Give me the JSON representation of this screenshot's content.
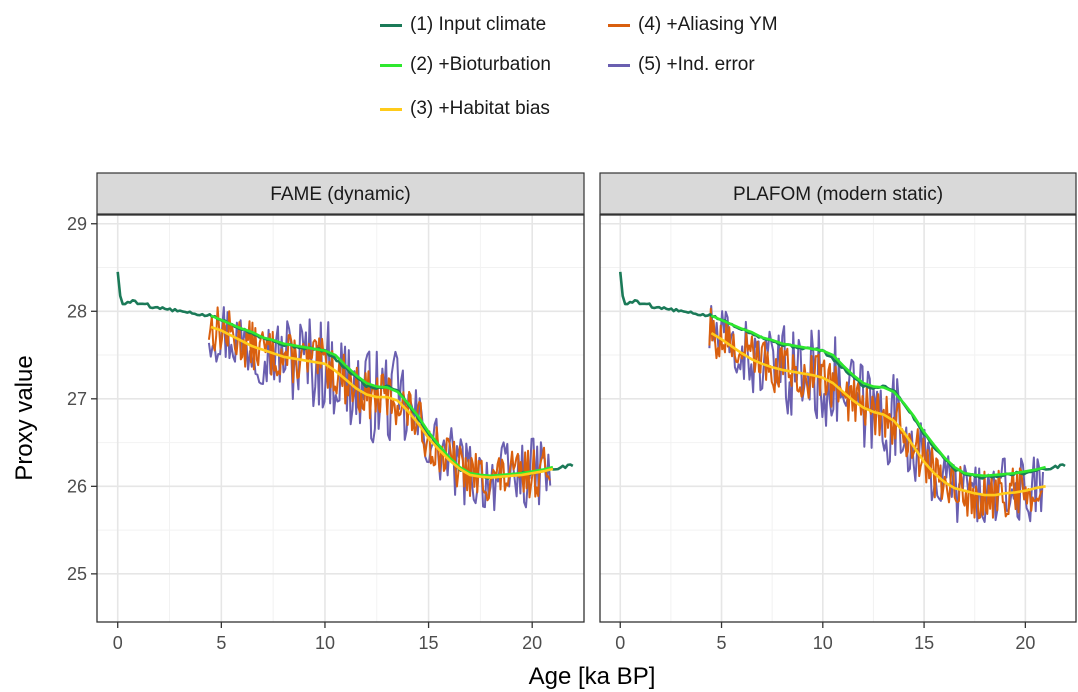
{
  "chart_data": {
    "type": "line",
    "xlabel": "Age [ka BP]",
    "ylabel": "Proxy value",
    "xlim": [
      -1,
      22.5
    ],
    "ylim": [
      24.45,
      29.1
    ],
    "xticks": [
      0,
      5,
      10,
      15,
      20
    ],
    "yticks": [
      25,
      26,
      27,
      28,
      29
    ],
    "grid": true,
    "legend_position": "top",
    "legend": [
      {
        "label": "(1) Input climate",
        "color": "#1b7a58"
      },
      {
        "label": "(2) +Bioturbation",
        "color": "#2ee82e"
      },
      {
        "label": "(3) +Habitat bias",
        "color": "#ffcb1a"
      },
      {
        "label": "(4) +Aliasing YM",
        "color": "#d95f0e"
      },
      {
        "label": "(5) +Ind. error",
        "color": "#6a5fb0"
      }
    ],
    "panels": [
      {
        "title": "FAME (dynamic)",
        "series": [
          {
            "name": "(1) Input climate",
            "color": "#1b7a58",
            "x": [
              0,
              0.1,
              0.2,
              0.5,
              0.8,
              1,
              1.3,
              1.6,
              2,
              2.5,
              3,
              3.5,
              4,
              4.5,
              5,
              5.5,
              6,
              6.5,
              7,
              7.5,
              8,
              8.5,
              9,
              9.5,
              10,
              10.5,
              11,
              11.5,
              12,
              12.5,
              13,
              13.5,
              14,
              14.5,
              15,
              15.5,
              16,
              16.5,
              17,
              17.5,
              18,
              18.5,
              19,
              19.5,
              20,
              20.5,
              21,
              21.5,
              22
            ],
            "y": [
              28.45,
              28.2,
              28.08,
              28.1,
              28.12,
              28.08,
              28.1,
              28.05,
              28.04,
              28.02,
              28.0,
              27.98,
              27.96,
              27.95,
              27.9,
              27.85,
              27.8,
              27.75,
              27.7,
              27.66,
              27.62,
              27.6,
              27.58,
              27.57,
              27.55,
              27.45,
              27.35,
              27.25,
              27.15,
              27.12,
              27.15,
              27.1,
              26.95,
              26.78,
              26.6,
              26.45,
              26.32,
              26.2,
              26.14,
              26.12,
              26.1,
              26.12,
              26.13,
              26.15,
              26.15,
              26.18,
              26.2,
              26.22,
              26.25
            ]
          },
          {
            "name": "(2) +Bioturbation",
            "color": "#2ee82e",
            "x": [
              4.5,
              5,
              5.5,
              6,
              6.5,
              7,
              7.5,
              8,
              8.5,
              9,
              9.5,
              10,
              10.5,
              11,
              11.5,
              12,
              12.5,
              13,
              13.5,
              14,
              14.5,
              15,
              15.5,
              16,
              16.5,
              17,
              17.5,
              18,
              18.5,
              19,
              19.5,
              20,
              20.5,
              21
            ],
            "y": [
              27.95,
              27.9,
              27.85,
              27.8,
              27.76,
              27.7,
              27.67,
              27.63,
              27.61,
              27.59,
              27.57,
              27.55,
              27.5,
              27.38,
              27.27,
              27.18,
              27.14,
              27.13,
              27.08,
              26.95,
              26.8,
              26.62,
              26.47,
              26.33,
              26.22,
              26.15,
              26.13,
              26.12,
              26.13,
              26.14,
              26.15,
              26.17,
              26.19,
              26.22
            ]
          },
          {
            "name": "(3) +Habitat bias",
            "color": "#ffcb1a",
            "x": [
              4.5,
              5,
              5.5,
              6,
              6.5,
              7,
              7.5,
              8,
              8.5,
              9,
              9.5,
              10,
              10.5,
              11,
              11.5,
              12,
              12.5,
              13,
              13.5,
              14,
              14.5,
              15,
              15.5,
              16,
              16.5,
              17,
              17.5,
              18,
              18.5,
              19,
              19.5,
              20,
              20.5,
              21
            ],
            "y": [
              27.82,
              27.78,
              27.72,
              27.66,
              27.6,
              27.56,
              27.52,
              27.48,
              27.46,
              27.44,
              27.42,
              27.4,
              27.32,
              27.22,
              27.12,
              27.05,
              27.02,
              27.02,
              26.98,
              26.86,
              26.72,
              26.55,
              26.42,
              26.3,
              26.2,
              26.13,
              26.11,
              26.1,
              26.11,
              26.12,
              26.13,
              26.15,
              26.17,
              26.2
            ]
          }
        ]
      },
      {
        "title": "PLAFOM (modern static)",
        "series": [
          {
            "name": "(1) Input climate",
            "color": "#1b7a58",
            "x": [
              0,
              0.1,
              0.2,
              0.5,
              0.8,
              1,
              1.3,
              1.6,
              2,
              2.5,
              3,
              3.5,
              4,
              4.5,
              5,
              5.5,
              6,
              6.5,
              7,
              7.5,
              8,
              8.5,
              9,
              9.5,
              10,
              10.5,
              11,
              11.5,
              12,
              12.5,
              13,
              13.5,
              14,
              14.5,
              15,
              15.5,
              16,
              16.5,
              17,
              17.5,
              18,
              18.5,
              19,
              19.5,
              20,
              20.5,
              21,
              21.5,
              22
            ],
            "y": [
              28.45,
              28.2,
              28.08,
              28.1,
              28.12,
              28.08,
              28.1,
              28.05,
              28.04,
              28.02,
              28.0,
              27.98,
              27.96,
              27.95,
              27.9,
              27.85,
              27.8,
              27.75,
              27.7,
              27.66,
              27.62,
              27.6,
              27.58,
              27.57,
              27.55,
              27.45,
              27.35,
              27.25,
              27.15,
              27.12,
              27.15,
              27.1,
              26.95,
              26.78,
              26.6,
              26.45,
              26.32,
              26.2,
              26.14,
              26.12,
              26.1,
              26.12,
              26.13,
              26.15,
              26.15,
              26.18,
              26.2,
              26.22,
              26.25
            ]
          },
          {
            "name": "(2) +Bioturbation",
            "color": "#2ee82e",
            "x": [
              4.5,
              5,
              5.5,
              6,
              6.5,
              7,
              7.5,
              8,
              8.5,
              9,
              9.5,
              10,
              10.5,
              11,
              11.5,
              12,
              12.5,
              13,
              13.5,
              14,
              14.5,
              15,
              15.5,
              16,
              16.5,
              17,
              17.5,
              18,
              18.5,
              19,
              19.5,
              20,
              20.5,
              21
            ],
            "y": [
              27.95,
              27.9,
              27.85,
              27.8,
              27.76,
              27.7,
              27.67,
              27.63,
              27.61,
              27.59,
              27.57,
              27.55,
              27.5,
              27.38,
              27.27,
              27.18,
              27.14,
              27.13,
              27.08,
              26.95,
              26.8,
              26.62,
              26.47,
              26.33,
              26.22,
              26.15,
              26.13,
              26.12,
              26.13,
              26.14,
              26.15,
              26.17,
              26.19,
              26.22
            ]
          },
          {
            "name": "(3) +Habitat bias",
            "color": "#ffcb1a",
            "x": [
              4.5,
              5,
              5.5,
              6,
              6.5,
              7,
              7.5,
              8,
              8.5,
              9,
              9.5,
              10,
              10.5,
              11,
              11.5,
              12,
              12.5,
              13,
              13.5,
              14,
              14.5,
              15,
              15.5,
              16,
              16.5,
              17,
              17.5,
              18,
              18.5,
              19,
              19.5,
              20,
              20.5,
              21
            ],
            "y": [
              27.75,
              27.68,
              27.6,
              27.52,
              27.45,
              27.4,
              27.36,
              27.33,
              27.31,
              27.29,
              27.27,
              27.24,
              27.18,
              27.08,
              26.98,
              26.9,
              26.85,
              26.82,
              26.75,
              26.62,
              26.45,
              26.28,
              26.15,
              26.05,
              25.98,
              25.95,
              25.92,
              25.9,
              25.9,
              25.92,
              25.93,
              25.95,
              25.98,
              26.0
            ]
          }
        ]
      }
    ]
  }
}
